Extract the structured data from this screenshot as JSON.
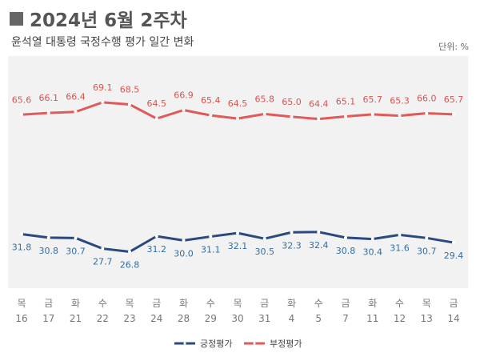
{
  "title": "2024년 6월 2주차",
  "subtitle": "윤석열 대통령 국정수행 평가 일간 변화",
  "unit": "단위: %",
  "chart_data": {
    "type": "line",
    "title": "2024년 6월 2주차",
    "subtitle": "윤석열 대통령 국정수행 평가 일간 변화",
    "categories": [
      [
        "목",
        "16"
      ],
      [
        "금",
        "17"
      ],
      [
        "화",
        "21"
      ],
      [
        "수",
        "22"
      ],
      [
        "목",
        "23"
      ],
      [
        "금",
        "24"
      ],
      [
        "화",
        "28"
      ],
      [
        "수",
        "29"
      ],
      [
        "목",
        "30"
      ],
      [
        "금",
        "31"
      ],
      [
        "화",
        "4"
      ],
      [
        "수",
        "5"
      ],
      [
        "금",
        "7"
      ],
      [
        "화",
        "11"
      ],
      [
        "수",
        "12"
      ],
      [
        "목",
        "13"
      ],
      [
        "금",
        "14"
      ]
    ],
    "series": [
      {
        "name": "긍정평가",
        "color": "#2a4a7f",
        "label_color": "#2f6fa6",
        "values": [
          31.8,
          30.8,
          30.7,
          27.7,
          26.8,
          31.2,
          30.0,
          31.1,
          32.1,
          30.5,
          32.3,
          32.4,
          30.8,
          30.4,
          31.6,
          30.7,
          29.4
        ]
      },
      {
        "name": "부정평가",
        "color": "#e05a5a",
        "label_color": "#d9534f",
        "values": [
          65.6,
          66.1,
          66.4,
          69.1,
          68.5,
          64.5,
          66.9,
          65.4,
          64.5,
          65.8,
          65.0,
          64.4,
          65.1,
          65.7,
          65.3,
          66.0,
          65.7
        ]
      }
    ],
    "ylim": [
      16.5,
      82.2
    ],
    "grid": false,
    "legend": "bottom",
    "background": "#f2f2f2"
  }
}
